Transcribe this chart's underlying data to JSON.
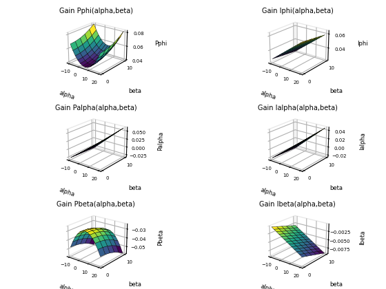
{
  "alpha_range": [
    -10,
    20
  ],
  "beta_range": [
    0,
    10
  ],
  "titles": [
    "Gain Pphi(alpha,beta)",
    "Gain Iphi(alpha,beta)",
    "Gain Palpha(alpha,beta)",
    "Gain Ialpha(alpha,beta)",
    "Gain Pbeta(alpha,beta)",
    "Gain Ibeta(alpha,beta)"
  ],
  "zlabels": [
    "Pphi",
    "Iphi",
    "Palpha",
    "Ialpha",
    "Pbeta",
    "Ibeta"
  ],
  "xlabel": "alpha",
  "ylabel": "beta",
  "cmap": "viridis",
  "figsize": [
    5.6,
    4.2
  ],
  "dpi": 100,
  "elev": 22,
  "azim": -52
}
